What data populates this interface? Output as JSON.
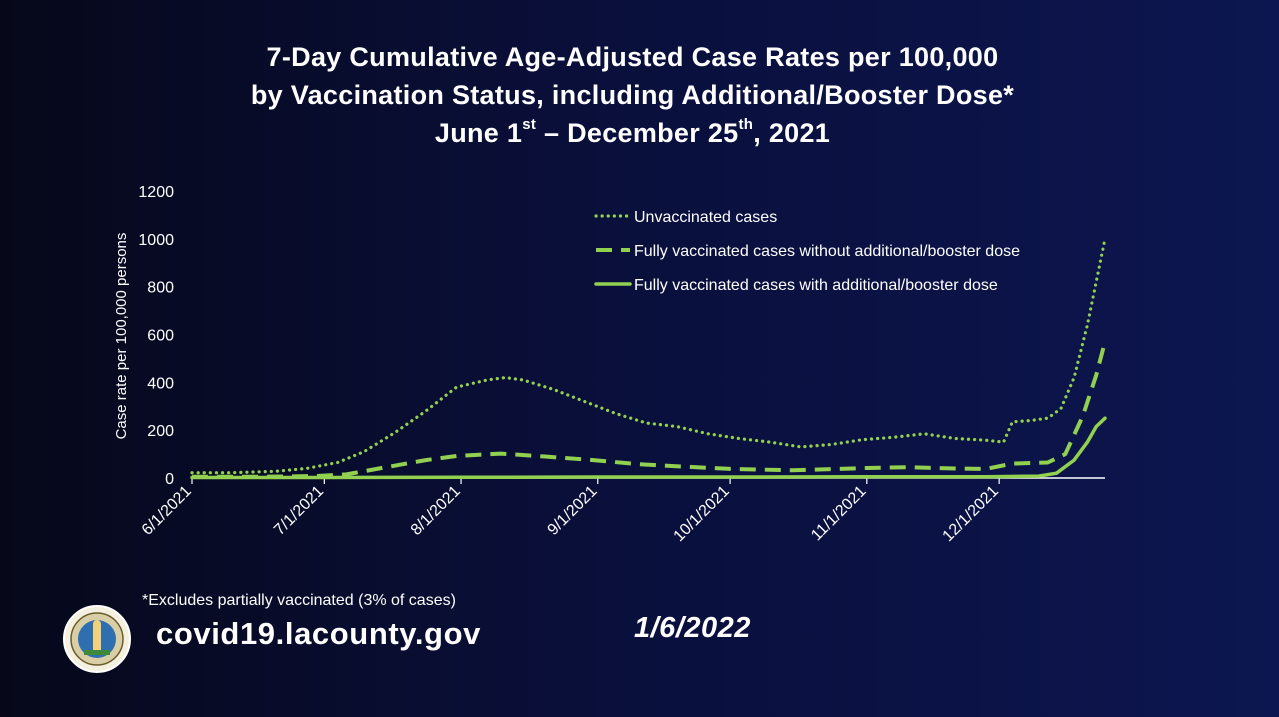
{
  "title": {
    "line1": "7-Day Cumulative Age-Adjusted Case Rates per 100,000",
    "line2": "by Vaccination Status, including Additional/Booster Dose*",
    "line3_a": "June 1",
    "line3_sup1": "st",
    "line3_b": " – December 25",
    "line3_sup2": "th",
    "line3_c": ", 2021"
  },
  "footnote": "*Excludes partially vaccinated (3% of cases)",
  "website": "covid19.lacounty.gov",
  "date": "1/6/2022",
  "seal_icon": "la-county-seal-icon",
  "colors": {
    "line": "#92d050",
    "text": "#ffffff"
  },
  "chart_data": {
    "type": "line",
    "xlabel": "",
    "ylabel": "Case rate per 100,000 persons",
    "ylim": [
      0,
      1200
    ],
    "yticks": [
      0,
      200,
      400,
      600,
      800,
      1000,
      1200
    ],
    "xlim": [
      "2021-06-01",
      "2021-12-25"
    ],
    "xticks": [
      "2021-06-01",
      "2021-07-01",
      "2021-08-01",
      "2021-09-01",
      "2021-10-01",
      "2021-11-01",
      "2021-12-01"
    ],
    "xtick_labels": [
      "6/1/2021",
      "7/1/2021",
      "8/1/2021",
      "9/1/2021",
      "10/1/2021",
      "11/1/2021",
      "12/1/2021"
    ],
    "legend_position": "top-right",
    "grid": false,
    "series": [
      {
        "name": "Unvaccinated cases",
        "style": "dotted",
        "points": [
          [
            "2021-06-01",
            22
          ],
          [
            "2021-06-10",
            22
          ],
          [
            "2021-06-20",
            28
          ],
          [
            "2021-06-27",
            40
          ],
          [
            "2021-07-04",
            65
          ],
          [
            "2021-07-10",
            110
          ],
          [
            "2021-07-17",
            190
          ],
          [
            "2021-07-24",
            280
          ],
          [
            "2021-07-31",
            380
          ],
          [
            "2021-08-07",
            410
          ],
          [
            "2021-08-11",
            420
          ],
          [
            "2021-08-15",
            410
          ],
          [
            "2021-08-22",
            370
          ],
          [
            "2021-08-29",
            320
          ],
          [
            "2021-09-05",
            270
          ],
          [
            "2021-09-12",
            230
          ],
          [
            "2021-09-19",
            215
          ],
          [
            "2021-09-26",
            185
          ],
          [
            "2021-10-03",
            165
          ],
          [
            "2021-10-10",
            150
          ],
          [
            "2021-10-17",
            130
          ],
          [
            "2021-10-24",
            140
          ],
          [
            "2021-10-31",
            160
          ],
          [
            "2021-11-07",
            170
          ],
          [
            "2021-11-14",
            185
          ],
          [
            "2021-11-21",
            165
          ],
          [
            "2021-11-28",
            158
          ],
          [
            "2021-12-02",
            150
          ],
          [
            "2021-12-04",
            235
          ],
          [
            "2021-12-08",
            240
          ],
          [
            "2021-12-12",
            250
          ],
          [
            "2021-12-15",
            290
          ],
          [
            "2021-12-18",
            420
          ],
          [
            "2021-12-21",
            640
          ],
          [
            "2021-12-23",
            820
          ],
          [
            "2021-12-25",
            1000
          ]
        ]
      },
      {
        "name": "Fully vaccinated cases without additional/booster dose",
        "style": "dashed",
        "points": [
          [
            "2021-06-01",
            5
          ],
          [
            "2021-06-15",
            5
          ],
          [
            "2021-06-29",
            8
          ],
          [
            "2021-07-06",
            15
          ],
          [
            "2021-07-15",
            45
          ],
          [
            "2021-07-24",
            75
          ],
          [
            "2021-07-31",
            92
          ],
          [
            "2021-08-10",
            102
          ],
          [
            "2021-08-20",
            90
          ],
          [
            "2021-08-31",
            75
          ],
          [
            "2021-09-10",
            58
          ],
          [
            "2021-09-20",
            48
          ],
          [
            "2021-10-01",
            38
          ],
          [
            "2021-10-15",
            32
          ],
          [
            "2021-11-01",
            42
          ],
          [
            "2021-11-10",
            45
          ],
          [
            "2021-11-20",
            40
          ],
          [
            "2021-11-28",
            38
          ],
          [
            "2021-12-04",
            60
          ],
          [
            "2021-12-12",
            65
          ],
          [
            "2021-12-16",
            100
          ],
          [
            "2021-12-20",
            260
          ],
          [
            "2021-12-23",
            430
          ],
          [
            "2021-12-25",
            570
          ]
        ]
      },
      {
        "name": "Fully vaccinated cases with additional/booster dose",
        "style": "solid",
        "points": [
          [
            "2021-06-01",
            2
          ],
          [
            "2021-07-01",
            2
          ],
          [
            "2021-08-01",
            3
          ],
          [
            "2021-09-01",
            4
          ],
          [
            "2021-10-01",
            4
          ],
          [
            "2021-11-01",
            5
          ],
          [
            "2021-11-28",
            5
          ],
          [
            "2021-12-10",
            8
          ],
          [
            "2021-12-14",
            20
          ],
          [
            "2021-12-18",
            75
          ],
          [
            "2021-12-21",
            150
          ],
          [
            "2021-12-23",
            215
          ],
          [
            "2021-12-25",
            250
          ]
        ]
      }
    ]
  }
}
